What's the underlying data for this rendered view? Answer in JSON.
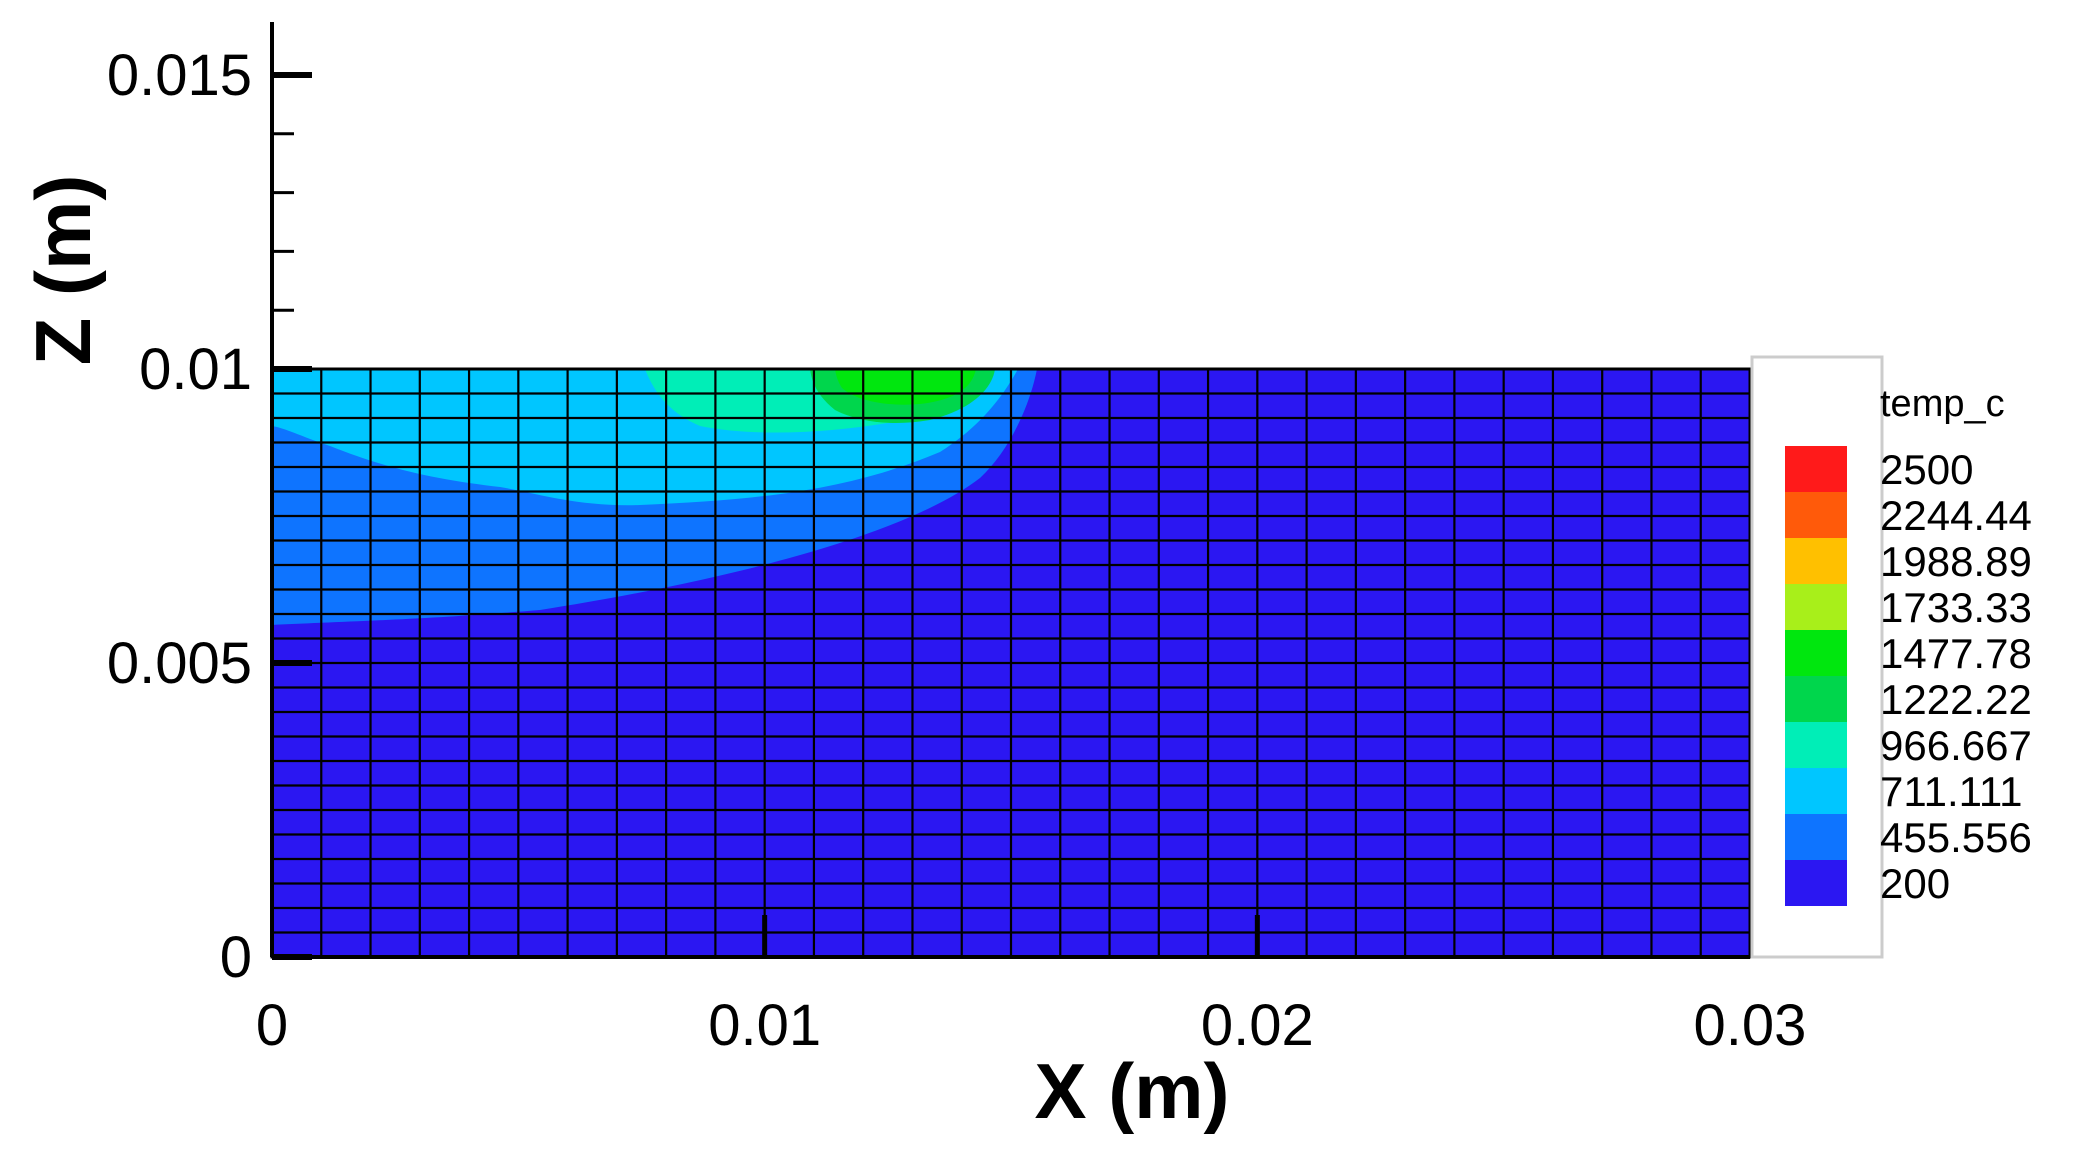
{
  "chart_data": {
    "type": "heatmap",
    "title": "",
    "xlabel": "X (m)",
    "ylabel": "Z (m)",
    "xlim": [
      0,
      0.03
    ],
    "ylim": [
      0,
      0.016
    ],
    "domain_top_z": 0.01,
    "x_ticks": [
      "0",
      "0.01",
      "0.02",
      "0.03"
    ],
    "x_tick_values": [
      0,
      0.01,
      0.02,
      0.03
    ],
    "y_ticks": [
      "0",
      "0.005",
      "0.01",
      "0.015"
    ],
    "y_tick_values": [
      0,
      0.005,
      0.01,
      0.015
    ],
    "mesh": {
      "x_cells": 30,
      "z_cells": 24
    },
    "background_temp": 200,
    "legend": {
      "title": "temp_c",
      "position": "right",
      "levels": [
        {
          "label": "2500",
          "color": "#ff1a1a"
        },
        {
          "label": "2244.44",
          "color": "#ff5a0a"
        },
        {
          "label": "1988.89",
          "color": "#ffc000"
        },
        {
          "label": "1733.33",
          "color": "#a8ef1a"
        },
        {
          "label": "1477.78",
          "color": "#00e70e"
        },
        {
          "label": "1222.22",
          "color": "#00d64c"
        },
        {
          "label": "966.667",
          "color": "#00eeb7"
        },
        {
          "label": "711.111",
          "color": "#00c6ff"
        },
        {
          "label": "455.556",
          "color": "#0e74ff"
        },
        {
          "label": "200",
          "color": "#2b17f2"
        }
      ]
    },
    "contours": [
      {
        "temp_min": 200,
        "color": "#2b17f2",
        "region": "full domain background"
      },
      {
        "temp_min": 455.556,
        "color": "#0e74ff",
        "extent_x": [
          0,
          0.0155
        ],
        "extent_z": [
          0.0057,
          0.01
        ]
      },
      {
        "temp_min": 711.111,
        "color": "#00c6ff",
        "extent_x": [
          0,
          0.0152
        ],
        "extent_z": [
          0.0077,
          0.01
        ]
      },
      {
        "temp_min": 966.667,
        "color": "#00eeb7",
        "extent_x": [
          0.0076,
          0.0146
        ],
        "extent_z": [
          0.0091,
          0.01
        ]
      },
      {
        "temp_min": 1222.22,
        "color": "#00d64c",
        "extent_x": [
          0.011,
          0.0147
        ],
        "extent_z": [
          0.0093,
          0.01
        ]
      },
      {
        "temp_min": 1477.78,
        "color": "#00e70e",
        "extent_x": [
          0.0113,
          0.0136
        ],
        "extent_z": [
          0.0095,
          0.01
        ]
      }
    ]
  }
}
